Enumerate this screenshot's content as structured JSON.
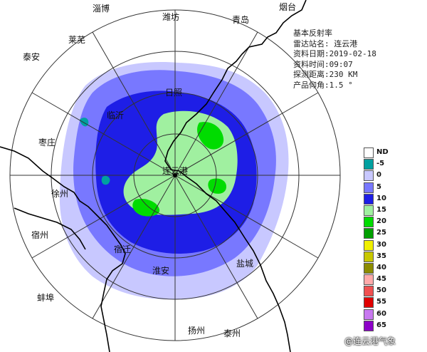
{
  "info": {
    "product_name_label": "基本反射率",
    "station_label": "雷达站名:",
    "station_value": "连云港",
    "date_label": "资料日期:",
    "date_value": "2019-02-18",
    "time_label": "资料时间:",
    "time_value": "09:07",
    "range_label": "探测距离:",
    "range_value": "230 KM",
    "elevation_label": "产品仰角:",
    "elevation_value": "1.5 °"
  },
  "cities": [
    {
      "name": "淄博",
      "id": "zibo"
    },
    {
      "name": "潍坊",
      "id": "weifang"
    },
    {
      "name": "青岛",
      "id": "qingdao"
    },
    {
      "name": "烟台",
      "id": "yantai"
    },
    {
      "name": "莱芜",
      "id": "laiwu"
    },
    {
      "name": "泰安",
      "id": "taian"
    },
    {
      "name": "日照",
      "id": "rizhao"
    },
    {
      "name": "临沂",
      "id": "linyi"
    },
    {
      "name": "枣庄",
      "id": "zaozhuang"
    },
    {
      "name": "连云港",
      "id": "lianyungang"
    },
    {
      "name": "徐州",
      "id": "xuzhou"
    },
    {
      "name": "宿州",
      "id": "suzhou"
    },
    {
      "name": "宿迁",
      "id": "suqian"
    },
    {
      "name": "淮安",
      "id": "huaian"
    },
    {
      "name": "盐城",
      "id": "yancheng"
    },
    {
      "name": "蚌埠",
      "id": "bengbu"
    },
    {
      "name": "扬州",
      "id": "yangzhou"
    },
    {
      "name": "泰州",
      "id": "taizhou"
    }
  ],
  "legend": {
    "items": [
      {
        "label": "ND",
        "color": "#ffffff"
      },
      {
        "label": "-5",
        "color": "#00a0a0"
      },
      {
        "label": "0",
        "color": "#c8c8ff"
      },
      {
        "label": "5",
        "color": "#7878ff"
      },
      {
        "label": "10",
        "color": "#1e1ee6"
      },
      {
        "label": "15",
        "color": "#a0f0a0"
      },
      {
        "label": "20",
        "color": "#00dc00"
      },
      {
        "label": "25",
        "color": "#00a000"
      },
      {
        "label": "30",
        "color": "#f0f000"
      },
      {
        "label": "35",
        "color": "#c8c800"
      },
      {
        "label": "40",
        "color": "#8c8c00"
      },
      {
        "label": "45",
        "color": "#ffaaaa"
      },
      {
        "label": "50",
        "color": "#f05050"
      },
      {
        "label": "55",
        "color": "#e00000"
      },
      {
        "label": "60",
        "color": "#c878f0"
      },
      {
        "label": "65",
        "color": "#8c00c8"
      }
    ]
  },
  "watermark": "@连云港气象"
}
